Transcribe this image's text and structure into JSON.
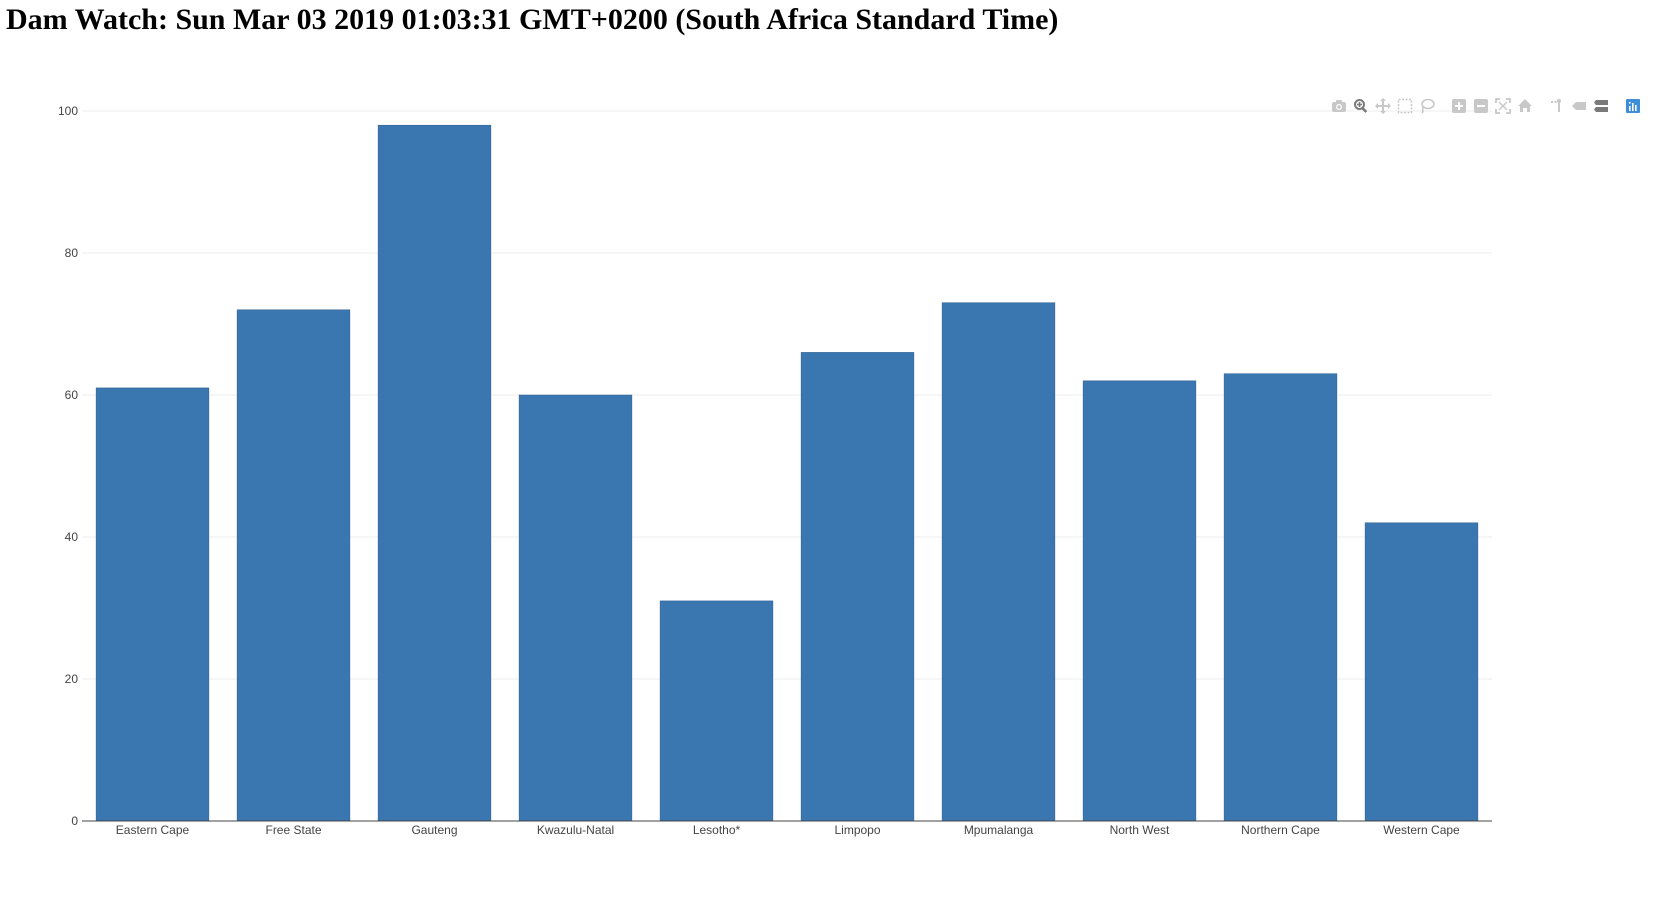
{
  "page": {
    "title": "Dam Watch: Sun Mar 03 2019 01:03:31 GMT+0200 (South Africa Standard Time)"
  },
  "colors": {
    "bar": "#3a76af",
    "bar_outline": "#2a5c8c",
    "grid": "#eeeeee",
    "axis_text": "#444444",
    "modebar_icon": "#c8c8c8",
    "modebar_active": "#7a7a7a",
    "logo": "#3f8ed8"
  },
  "modebar": [
    {
      "name": "download-plot-icon",
      "active": false
    },
    {
      "name": "zoom-icon",
      "active": true
    },
    {
      "name": "pan-icon",
      "active": false
    },
    {
      "name": "box-select-icon",
      "active": false
    },
    {
      "name": "lasso-select-icon",
      "active": false
    },
    {
      "name": "zoom-in-icon",
      "active": false
    },
    {
      "name": "zoom-out-icon",
      "active": false
    },
    {
      "name": "autoscale-icon",
      "active": false
    },
    {
      "name": "reset-axes-icon",
      "active": false
    },
    {
      "name": "toggle-spike-lines-icon",
      "active": false
    },
    {
      "name": "hover-closest-icon",
      "active": false
    },
    {
      "name": "hover-compare-icon",
      "active": true
    },
    {
      "name": "plotly-logo-icon",
      "active": false
    }
  ],
  "chart_data": {
    "type": "bar",
    "title": "",
    "xlabel": "",
    "ylabel": "",
    "categories": [
      "Eastern Cape",
      "Free State",
      "Gauteng",
      "Kwazulu-Natal",
      "Lesotho*",
      "Limpopo",
      "Mpumalanga",
      "North West",
      "Northern Cape",
      "Western Cape"
    ],
    "values": [
      61,
      72,
      98,
      60,
      31,
      66,
      73,
      62,
      63,
      42
    ],
    "ylim": [
      0,
      100
    ],
    "yticks": [
      "0",
      "20",
      "40",
      "60",
      "80",
      "100"
    ],
    "grid": true,
    "legend": false
  }
}
